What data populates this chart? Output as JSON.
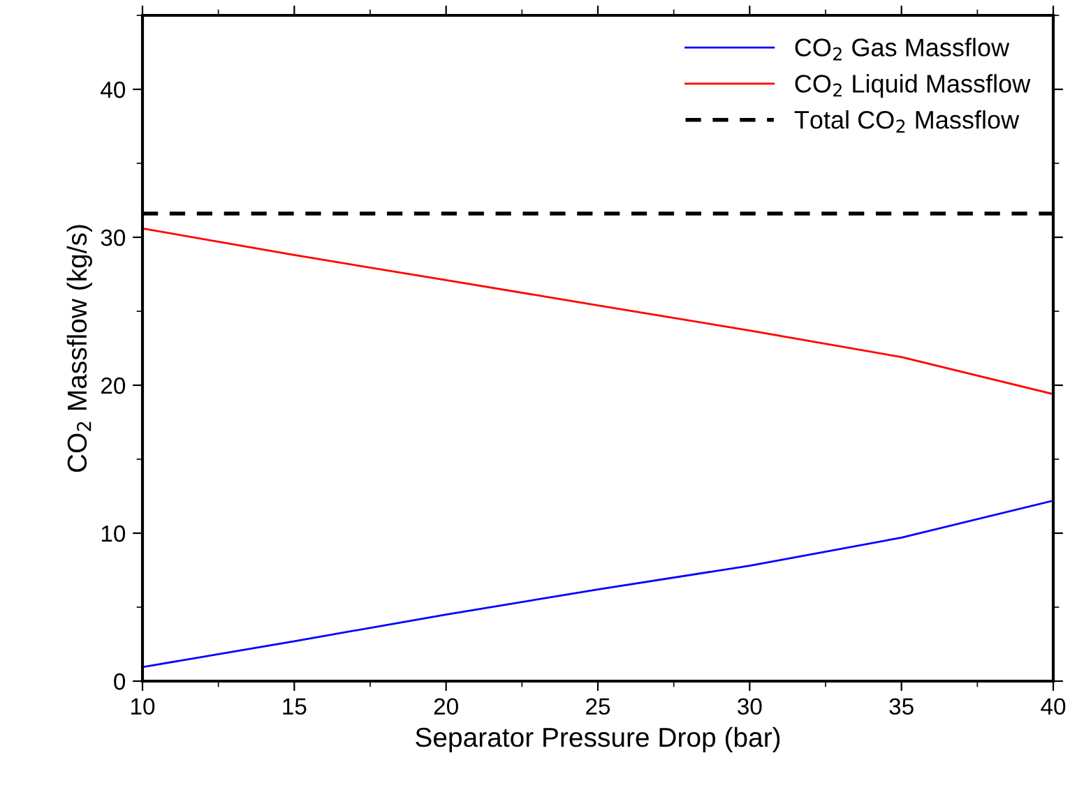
{
  "chart_data": {
    "type": "line",
    "xlabel": "Separator Pressure Drop (bar)",
    "ylabel": "CO$_{2}$ Massflow (kg/s)",
    "x": [
      10,
      15,
      20,
      25,
      30,
      35,
      40
    ],
    "series": [
      {
        "name": "CO$_{2}$ Gas Massflow",
        "color": "#0000ff",
        "values": [
          0.95,
          2.7,
          4.5,
          6.2,
          7.8,
          9.7,
          12.2
        ],
        "line_style": "solid"
      },
      {
        "name": "CO$_{2}$ Liquid Massflow",
        "color": "#ff0000",
        "values": [
          30.6,
          28.8,
          27.1,
          25.4,
          23.7,
          21.9,
          19.4
        ],
        "line_style": "solid"
      },
      {
        "name": "Total CO$_{2}$ Massflow",
        "color": "#000000",
        "values": [
          31.6,
          31.6,
          31.6,
          31.6,
          31.6,
          31.6,
          31.6
        ],
        "line_style": "dashed"
      }
    ],
    "xlim": [
      10,
      40
    ],
    "xticks": [
      10,
      15,
      20,
      25,
      30,
      35,
      40
    ],
    "ylim": [
      0,
      45
    ],
    "yticks": [
      0,
      10,
      20,
      30,
      40
    ],
    "grid": false,
    "legend": "top right",
    "marker": "none"
  }
}
